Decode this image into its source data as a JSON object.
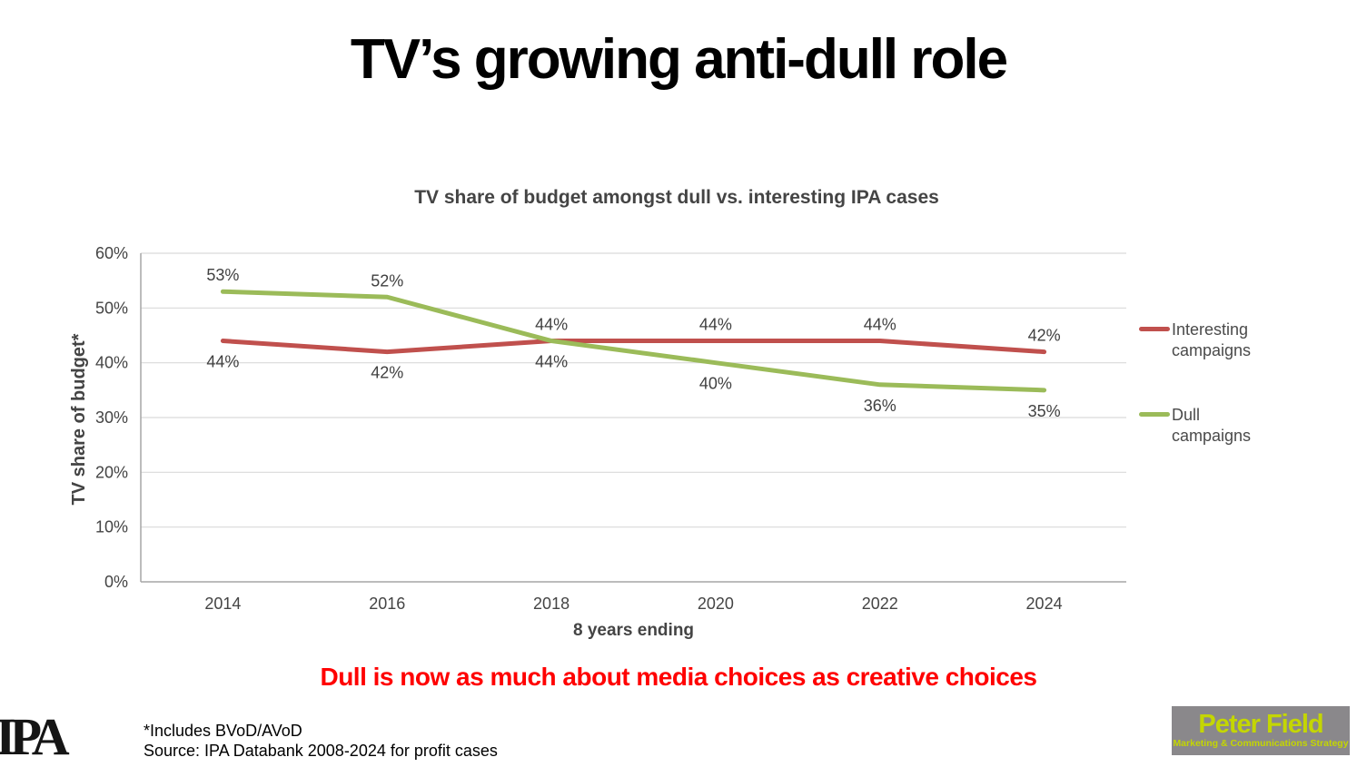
{
  "slide": {
    "title": "TV’s growing anti-dull role",
    "callout": "Dull is now as much about media choices as creative choices",
    "footnote_line1": "*Includes BVoD/AVoD",
    "footnote_line2": "Source: IPA Databank 2008-2024 for profit cases"
  },
  "logos": {
    "ipa_text": "IPA",
    "peter_field_title": "Peter Field",
    "peter_field_subtitle": "Marketing & Communications Strategy"
  },
  "colors": {
    "interesting_line": "#C0504D",
    "dull_line": "#9BBB59",
    "callout_text": "#FF0000",
    "axis_text": "#444444",
    "data_label_text": "#404040",
    "gridline": "#D9D9D9",
    "axis_line": "#A6A6A6",
    "peter_field_bg": "#8A888B",
    "peter_field_text": "#C4D600"
  },
  "chart_data": {
    "type": "line",
    "title": "TV share of budget amongst dull vs. interesting IPA cases",
    "xlabel": "8 years ending",
    "ylabel": "TV share of budget*",
    "categories": [
      "2014",
      "2016",
      "2018",
      "2020",
      "2022",
      "2024"
    ],
    "series": [
      {
        "name": "Interesting campaigns",
        "color": "#C0504D",
        "values": [
          44,
          42,
          44,
          44,
          44,
          42
        ],
        "label_side": [
          "below",
          "below",
          "above",
          "above",
          "above",
          "above"
        ]
      },
      {
        "name": "Dull campaigns",
        "color": "#9BBB59",
        "values": [
          53,
          52,
          44,
          40,
          36,
          35
        ],
        "label_side": [
          "above",
          "above",
          "below",
          "below",
          "below",
          "below"
        ]
      }
    ],
    "ylim": [
      0,
      60
    ],
    "ytick_step": 10,
    "ytick_format": "percent",
    "grid": true,
    "data_labels": true,
    "legend_position": "right"
  }
}
